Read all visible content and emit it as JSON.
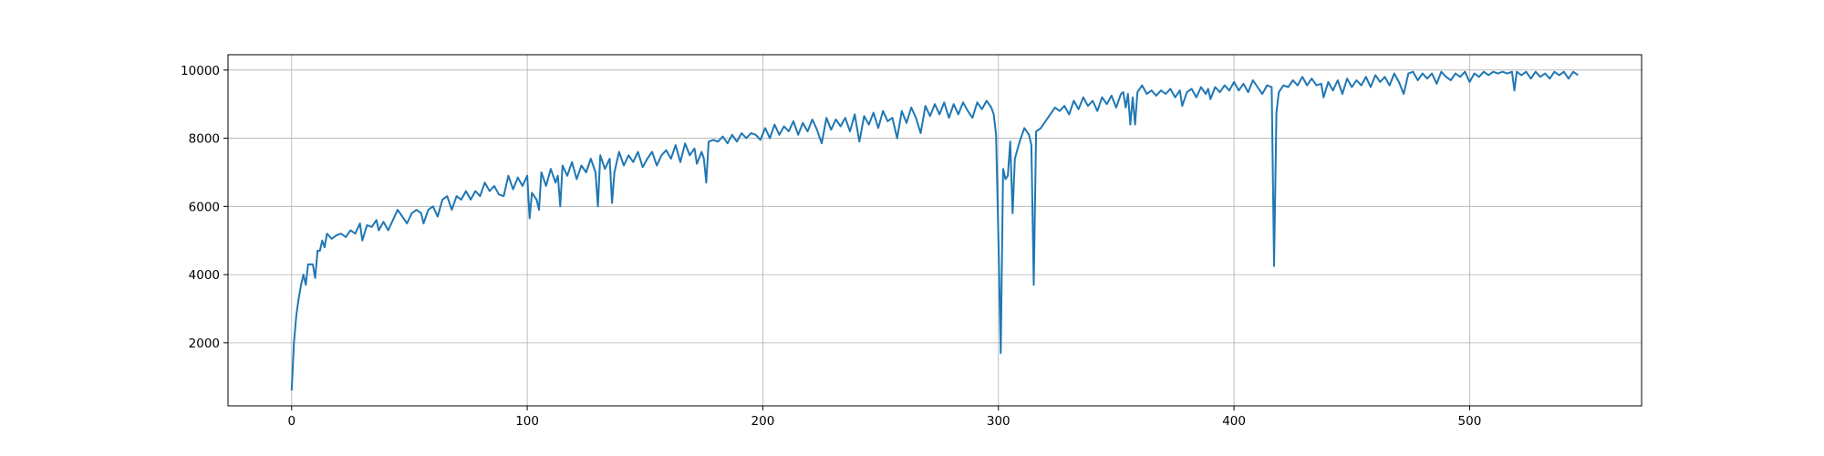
{
  "chart_data": {
    "type": "line",
    "title": "",
    "xlabel": "",
    "ylabel": "",
    "xlim": [
      -27,
      573
    ],
    "ylim": [
      150,
      10450
    ],
    "grid": true,
    "legend": "none",
    "xticks": [
      0,
      100,
      200,
      300,
      400,
      500
    ],
    "yticks": [
      2000,
      4000,
      6000,
      8000,
      10000
    ],
    "series": [
      {
        "color": "#1f77b4",
        "points": [
          [
            0,
            600
          ],
          [
            1,
            2000
          ],
          [
            2,
            2800
          ],
          [
            3,
            3300
          ],
          [
            4,
            3700
          ],
          [
            5,
            4000
          ],
          [
            6,
            3700
          ],
          [
            7,
            4300
          ],
          [
            8,
            4300
          ],
          [
            9,
            4300
          ],
          [
            10,
            3900
          ],
          [
            11,
            4700
          ],
          [
            12,
            4700
          ],
          [
            13,
            5000
          ],
          [
            14,
            4800
          ],
          [
            15,
            5200
          ],
          [
            17,
            5050
          ],
          [
            19,
            5150
          ],
          [
            21,
            5200
          ],
          [
            23,
            5100
          ],
          [
            25,
            5300
          ],
          [
            27,
            5200
          ],
          [
            29,
            5500
          ],
          [
            30,
            5000
          ],
          [
            32,
            5450
          ],
          [
            34,
            5400
          ],
          [
            36,
            5600
          ],
          [
            37,
            5300
          ],
          [
            39,
            5550
          ],
          [
            41,
            5300
          ],
          [
            43,
            5600
          ],
          [
            45,
            5900
          ],
          [
            47,
            5700
          ],
          [
            49,
            5500
          ],
          [
            51,
            5800
          ],
          [
            53,
            5900
          ],
          [
            55,
            5800
          ],
          [
            56,
            5500
          ],
          [
            58,
            5900
          ],
          [
            60,
            6000
          ],
          [
            62,
            5700
          ],
          [
            64,
            6200
          ],
          [
            66,
            6300
          ],
          [
            68,
            5900
          ],
          [
            70,
            6300
          ],
          [
            72,
            6200
          ],
          [
            74,
            6450
          ],
          [
            76,
            6200
          ],
          [
            78,
            6450
          ],
          [
            80,
            6300
          ],
          [
            82,
            6700
          ],
          [
            84,
            6450
          ],
          [
            86,
            6600
          ],
          [
            88,
            6350
          ],
          [
            90,
            6300
          ],
          [
            92,
            6900
          ],
          [
            94,
            6500
          ],
          [
            96,
            6850
          ],
          [
            98,
            6600
          ],
          [
            100,
            6900
          ],
          [
            101,
            5650
          ],
          [
            102,
            6400
          ],
          [
            104,
            6200
          ],
          [
            105,
            5900
          ],
          [
            106,
            7000
          ],
          [
            108,
            6600
          ],
          [
            110,
            7100
          ],
          [
            112,
            6700
          ],
          [
            113,
            6900
          ],
          [
            114,
            6000
          ],
          [
            115,
            7200
          ],
          [
            117,
            6900
          ],
          [
            119,
            7300
          ],
          [
            121,
            6800
          ],
          [
            123,
            7200
          ],
          [
            125,
            7000
          ],
          [
            127,
            7400
          ],
          [
            129,
            7000
          ],
          [
            130,
            6000
          ],
          [
            131,
            7500
          ],
          [
            133,
            7100
          ],
          [
            135,
            7400
          ],
          [
            136,
            6100
          ],
          [
            137,
            7000
          ],
          [
            139,
            7600
          ],
          [
            141,
            7200
          ],
          [
            143,
            7500
          ],
          [
            145,
            7300
          ],
          [
            147,
            7600
          ],
          [
            149,
            7150
          ],
          [
            151,
            7400
          ],
          [
            153,
            7600
          ],
          [
            155,
            7200
          ],
          [
            157,
            7500
          ],
          [
            159,
            7650
          ],
          [
            161,
            7400
          ],
          [
            163,
            7800
          ],
          [
            165,
            7300
          ],
          [
            167,
            7850
          ],
          [
            169,
            7500
          ],
          [
            171,
            7700
          ],
          [
            172,
            7250
          ],
          [
            174,
            7600
          ],
          [
            175,
            7400
          ],
          [
            176,
            6700
          ],
          [
            177,
            7900
          ],
          [
            179,
            7950
          ],
          [
            181,
            7900
          ],
          [
            183,
            8050
          ],
          [
            185,
            7850
          ],
          [
            187,
            8100
          ],
          [
            189,
            7900
          ],
          [
            191,
            8150
          ],
          [
            193,
            8000
          ],
          [
            195,
            8150
          ],
          [
            197,
            8100
          ],
          [
            199,
            7950
          ],
          [
            201,
            8300
          ],
          [
            203,
            8000
          ],
          [
            205,
            8400
          ],
          [
            207,
            8100
          ],
          [
            209,
            8350
          ],
          [
            211,
            8200
          ],
          [
            213,
            8500
          ],
          [
            215,
            8100
          ],
          [
            217,
            8450
          ],
          [
            219,
            8200
          ],
          [
            221,
            8550
          ],
          [
            223,
            8250
          ],
          [
            225,
            7850
          ],
          [
            227,
            8600
          ],
          [
            229,
            8250
          ],
          [
            231,
            8550
          ],
          [
            233,
            8350
          ],
          [
            235,
            8600
          ],
          [
            237,
            8200
          ],
          [
            239,
            8700
          ],
          [
            241,
            7900
          ],
          [
            243,
            8650
          ],
          [
            245,
            8400
          ],
          [
            247,
            8750
          ],
          [
            249,
            8300
          ],
          [
            251,
            8800
          ],
          [
            253,
            8500
          ],
          [
            255,
            8600
          ],
          [
            257,
            8000
          ],
          [
            259,
            8800
          ],
          [
            261,
            8450
          ],
          [
            263,
            8900
          ],
          [
            265,
            8600
          ],
          [
            267,
            8150
          ],
          [
            269,
            8950
          ],
          [
            271,
            8650
          ],
          [
            273,
            9000
          ],
          [
            275,
            8700
          ],
          [
            277,
            9050
          ],
          [
            279,
            8600
          ],
          [
            281,
            9000
          ],
          [
            283,
            8700
          ],
          [
            285,
            9050
          ],
          [
            287,
            8800
          ],
          [
            289,
            8600
          ],
          [
            291,
            9050
          ],
          [
            293,
            8850
          ],
          [
            295,
            9100
          ],
          [
            297,
            8900
          ],
          [
            298,
            8700
          ],
          [
            299,
            8100
          ],
          [
            300,
            5000
          ],
          [
            301,
            1700
          ],
          [
            302,
            7100
          ],
          [
            303,
            6800
          ],
          [
            304,
            6900
          ],
          [
            305,
            7900
          ],
          [
            306,
            5800
          ],
          [
            307,
            7400
          ],
          [
            309,
            7900
          ],
          [
            311,
            8300
          ],
          [
            313,
            8100
          ],
          [
            314,
            7800
          ],
          [
            315,
            3700
          ],
          [
            316,
            8200
          ],
          [
            318,
            8300
          ],
          [
            320,
            8500
          ],
          [
            322,
            8700
          ],
          [
            324,
            8900
          ],
          [
            326,
            8800
          ],
          [
            328,
            8950
          ],
          [
            330,
            8700
          ],
          [
            332,
            9100
          ],
          [
            334,
            8850
          ],
          [
            336,
            9200
          ],
          [
            338,
            8950
          ],
          [
            340,
            9100
          ],
          [
            342,
            8800
          ],
          [
            344,
            9200
          ],
          [
            346,
            9000
          ],
          [
            348,
            9250
          ],
          [
            350,
            8900
          ],
          [
            352,
            9300
          ],
          [
            353,
            9350
          ],
          [
            354,
            8900
          ],
          [
            355,
            9300
          ],
          [
            356,
            8400
          ],
          [
            357,
            9200
          ],
          [
            358,
            8400
          ],
          [
            359,
            9350
          ],
          [
            361,
            9550
          ],
          [
            363,
            9300
          ],
          [
            365,
            9400
          ],
          [
            367,
            9250
          ],
          [
            369,
            9400
          ],
          [
            371,
            9300
          ],
          [
            373,
            9450
          ],
          [
            375,
            9200
          ],
          [
            377,
            9400
          ],
          [
            378,
            8950
          ],
          [
            380,
            9350
          ],
          [
            382,
            9450
          ],
          [
            384,
            9200
          ],
          [
            386,
            9500
          ],
          [
            388,
            9300
          ],
          [
            389,
            9450
          ],
          [
            390,
            9150
          ],
          [
            392,
            9500
          ],
          [
            394,
            9350
          ],
          [
            396,
            9550
          ],
          [
            398,
            9400
          ],
          [
            400,
            9650
          ],
          [
            402,
            9400
          ],
          [
            404,
            9600
          ],
          [
            406,
            9350
          ],
          [
            408,
            9700
          ],
          [
            410,
            9500
          ],
          [
            412,
            9300
          ],
          [
            414,
            9550
          ],
          [
            416,
            9500
          ],
          [
            417,
            4250
          ],
          [
            418,
            8750
          ],
          [
            419,
            9350
          ],
          [
            421,
            9550
          ],
          [
            423,
            9500
          ],
          [
            425,
            9700
          ],
          [
            427,
            9550
          ],
          [
            429,
            9800
          ],
          [
            431,
            9550
          ],
          [
            433,
            9750
          ],
          [
            435,
            9550
          ],
          [
            437,
            9600
          ],
          [
            438,
            9200
          ],
          [
            440,
            9650
          ],
          [
            442,
            9400
          ],
          [
            444,
            9700
          ],
          [
            446,
            9300
          ],
          [
            448,
            9750
          ],
          [
            450,
            9500
          ],
          [
            452,
            9700
          ],
          [
            454,
            9550
          ],
          [
            456,
            9800
          ],
          [
            458,
            9500
          ],
          [
            460,
            9850
          ],
          [
            462,
            9650
          ],
          [
            464,
            9800
          ],
          [
            466,
            9550
          ],
          [
            468,
            9900
          ],
          [
            470,
            9650
          ],
          [
            472,
            9300
          ],
          [
            474,
            9900
          ],
          [
            476,
            9950
          ],
          [
            478,
            9700
          ],
          [
            480,
            9900
          ],
          [
            482,
            9750
          ],
          [
            484,
            9900
          ],
          [
            486,
            9600
          ],
          [
            488,
            9950
          ],
          [
            490,
            9800
          ],
          [
            492,
            9700
          ],
          [
            494,
            9900
          ],
          [
            496,
            9800
          ],
          [
            498,
            9950
          ],
          [
            500,
            9650
          ],
          [
            502,
            9900
          ],
          [
            504,
            9800
          ],
          [
            506,
            9950
          ],
          [
            508,
            9850
          ],
          [
            510,
            9950
          ],
          [
            512,
            9900
          ],
          [
            514,
            9950
          ],
          [
            516,
            9900
          ],
          [
            518,
            9950
          ],
          [
            519,
            9400
          ],
          [
            520,
            9950
          ],
          [
            522,
            9850
          ],
          [
            524,
            9950
          ],
          [
            526,
            9750
          ],
          [
            528,
            9950
          ],
          [
            530,
            9800
          ],
          [
            532,
            9900
          ],
          [
            534,
            9750
          ],
          [
            536,
            9950
          ],
          [
            538,
            9850
          ],
          [
            540,
            9950
          ],
          [
            542,
            9750
          ],
          [
            544,
            9950
          ],
          [
            546,
            9850
          ]
        ]
      }
    ]
  }
}
